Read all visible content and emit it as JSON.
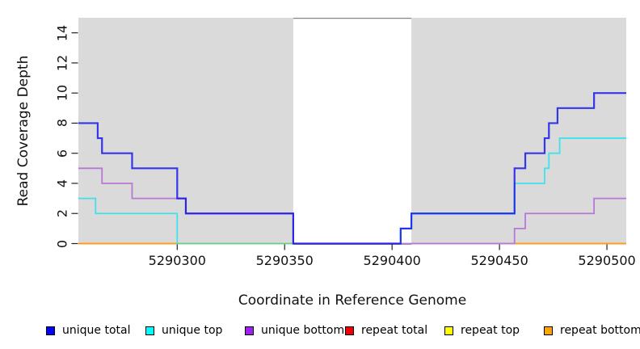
{
  "chart_data": {
    "type": "line",
    "subtype": "step-coverage",
    "title": "",
    "xlabel": "Coordinate in Reference Genome",
    "ylabel": "Read Coverage Depth",
    "xlim": [
      5290254,
      5290509
    ],
    "ylim": [
      0,
      15
    ],
    "xticks": [
      5290300,
      5290350,
      5290400,
      5290450,
      5290500
    ],
    "yticks": [
      0,
      2,
      4,
      6,
      8,
      10,
      12,
      14
    ],
    "grid": false,
    "legend_position": "bottom",
    "shaded_band_color": "#dadada",
    "gap_border_color": "#858585",
    "shaded_regions": [
      [
        5290254,
        5290354
      ],
      [
        5290409,
        5290509
      ]
    ],
    "series": [
      {
        "id": "repeat-bottom",
        "label": "repeat bottom",
        "line_color": "#ff9d1e",
        "legend_color": "#ffa500",
        "line_width": 2,
        "opacity": 1,
        "in_legend": true,
        "segments": [
          [
            5290254,
            5290300,
            0
          ],
          [
            5290457,
            5290509,
            0
          ]
        ]
      },
      {
        "id": "repeat-total",
        "label": "repeat total",
        "line_color": "#d95f7f",
        "legend_color": "#ee0000",
        "line_width": 1.5,
        "opacity": 1,
        "in_legend": true,
        "segments": [
          [
            5290409,
            5290457,
            0
          ]
        ]
      },
      {
        "id": "repeat-top",
        "label": "repeat top",
        "line_color": "#f5f500",
        "legend_color": "#ffff00",
        "line_width": 1.4,
        "opacity": 1,
        "in_legend": true,
        "segments": []
      },
      {
        "id": "unique-top",
        "label": "unique top",
        "line_color": "#3fe2ea",
        "legend_color": "#00ffff",
        "line_width": 1.8,
        "opacity": 1,
        "in_legend": true,
        "segments": [
          [
            5290254,
            5290262,
            3
          ],
          [
            5290262,
            5290300,
            2
          ],
          [
            5290300,
            5290404,
            0
          ],
          [
            5290404,
            5290409,
            1
          ],
          [
            5290409,
            5290457,
            2
          ],
          [
            5290457,
            5290471,
            4
          ],
          [
            5290471,
            5290473,
            5
          ],
          [
            5290473,
            5290478,
            6
          ],
          [
            5290478,
            5290509,
            7
          ]
        ]
      },
      {
        "id": "zero-green-segment",
        "label": "",
        "line_color": "#7cc87c",
        "legend_color": "#7cc87c",
        "line_width": 1.5,
        "opacity": 1,
        "in_legend": false,
        "segments": [
          [
            5290300,
            5290354,
            0
          ]
        ]
      },
      {
        "id": "unique-bottom",
        "label": "unique bottom",
        "line_color": "#b678d8",
        "legend_color": "#a020f0",
        "line_width": 1.8,
        "opacity": 1,
        "in_legend": true,
        "segments": [
          [
            5290254,
            5290265,
            5
          ],
          [
            5290265,
            5290279,
            4
          ],
          [
            5290279,
            5290304,
            3
          ],
          [
            5290304,
            5290354,
            2
          ],
          [
            5290354,
            5290457,
            0
          ],
          [
            5290457,
            5290462,
            1
          ],
          [
            5290462,
            5290494,
            2
          ],
          [
            5290494,
            5290509,
            3
          ]
        ]
      },
      {
        "id": "unique-total",
        "label": "unique total",
        "line_color": "#0b0bec",
        "legend_color": "#0000ff",
        "line_width": 2.2,
        "opacity": 0.8,
        "in_legend": true,
        "segments": [
          [
            5290254,
            5290263,
            8
          ],
          [
            5290263,
            5290265,
            7
          ],
          [
            5290265,
            5290279,
            6
          ],
          [
            5290279,
            5290300,
            5
          ],
          [
            5290300,
            5290304,
            3
          ],
          [
            5290304,
            5290354,
            2
          ],
          [
            5290354,
            5290404,
            0
          ],
          [
            5290404,
            5290409,
            1
          ],
          [
            5290409,
            5290457,
            2
          ],
          [
            5290457,
            5290462,
            5
          ],
          [
            5290462,
            5290471,
            6
          ],
          [
            5290471,
            5290473,
            7
          ],
          [
            5290473,
            5290477,
            8
          ],
          [
            5290477,
            5290494,
            9
          ],
          [
            5290494,
            5290509,
            10
          ]
        ]
      }
    ],
    "legend_order": [
      "unique-total",
      "unique-top",
      "unique-bottom",
      "repeat-total",
      "repeat-top",
      "repeat-bottom"
    ]
  }
}
